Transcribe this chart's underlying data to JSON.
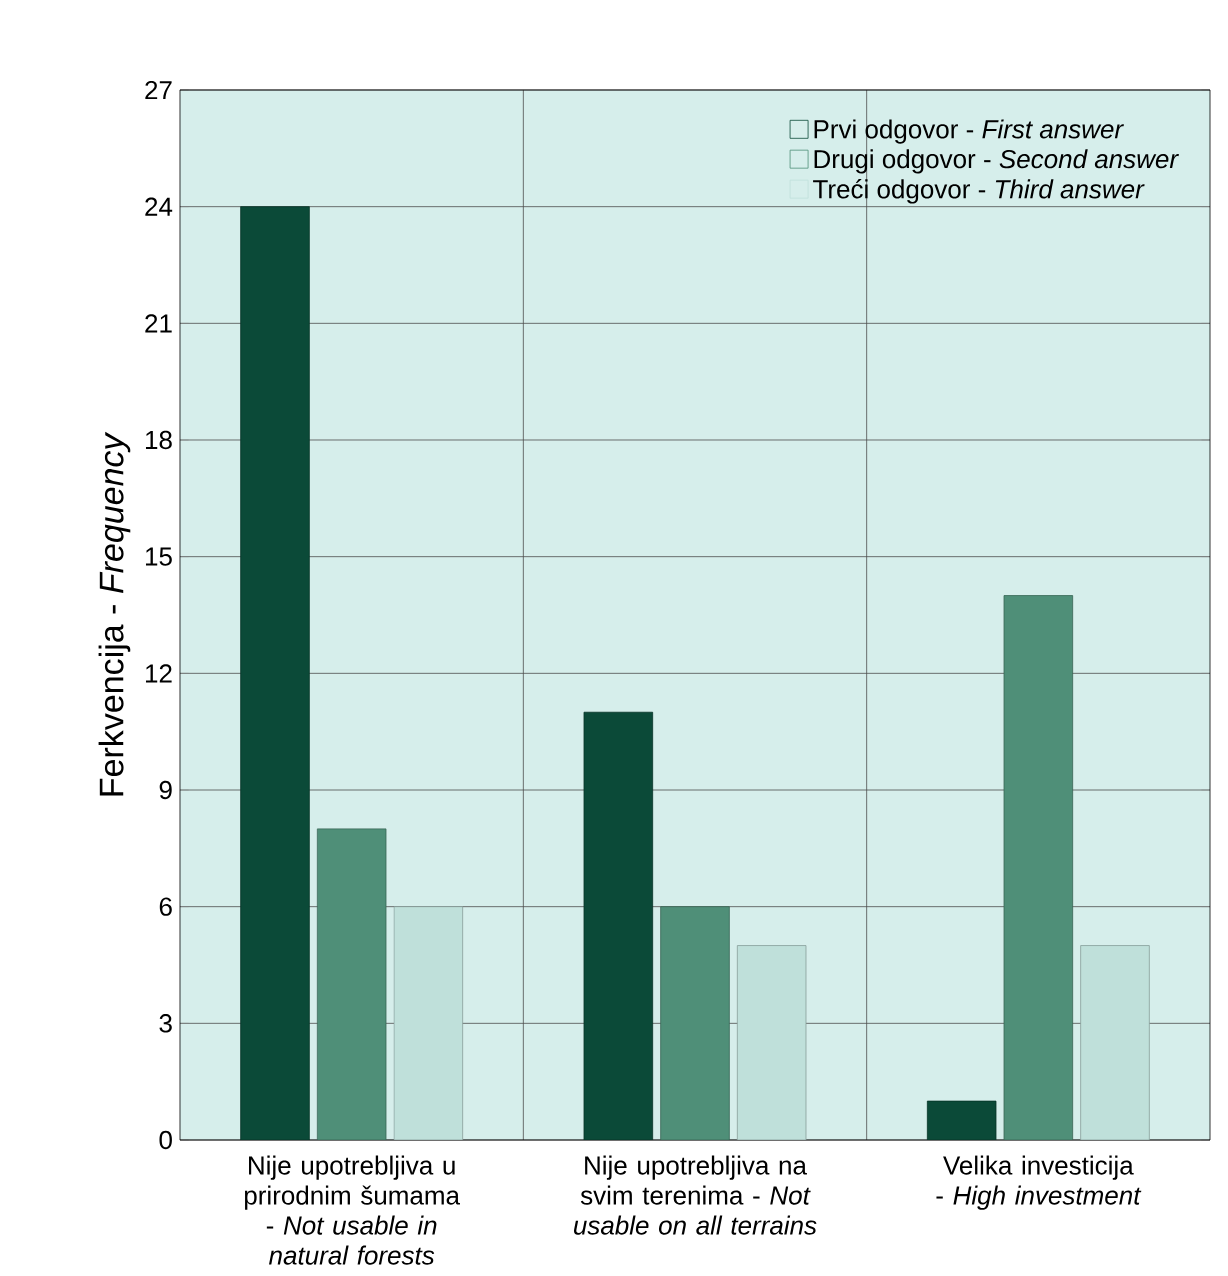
{
  "chart_data": {
    "type": "bar",
    "ylabel": "Ferkvencija - *Frequency*",
    "categories": [
      "Nije upotrebljiva u prirodnim šumama - *Not usable in natural forests*",
      "Nije upotrebljiva na svim terenima - *Not usable on all terrains*",
      "Velika investicija - *High investment*"
    ],
    "series": [
      {
        "name": "Prvi odgovor - *First answer*",
        "color": "#0b4a38",
        "values": [
          24,
          11,
          1
        ]
      },
      {
        "name": "Drugi odgovor - *Second answer*",
        "color": "#4f8f78",
        "values": [
          8,
          6,
          14
        ]
      },
      {
        "name": "Treći odgovor - *Third answer*",
        "color": "#bfe0da",
        "values": [
          6,
          5,
          5
        ]
      }
    ],
    "ylim": [
      0,
      27
    ],
    "yticks": [
      0,
      3,
      6,
      9,
      12,
      15,
      18,
      21,
      24,
      27
    ],
    "grid": true,
    "legend": "top right"
  }
}
